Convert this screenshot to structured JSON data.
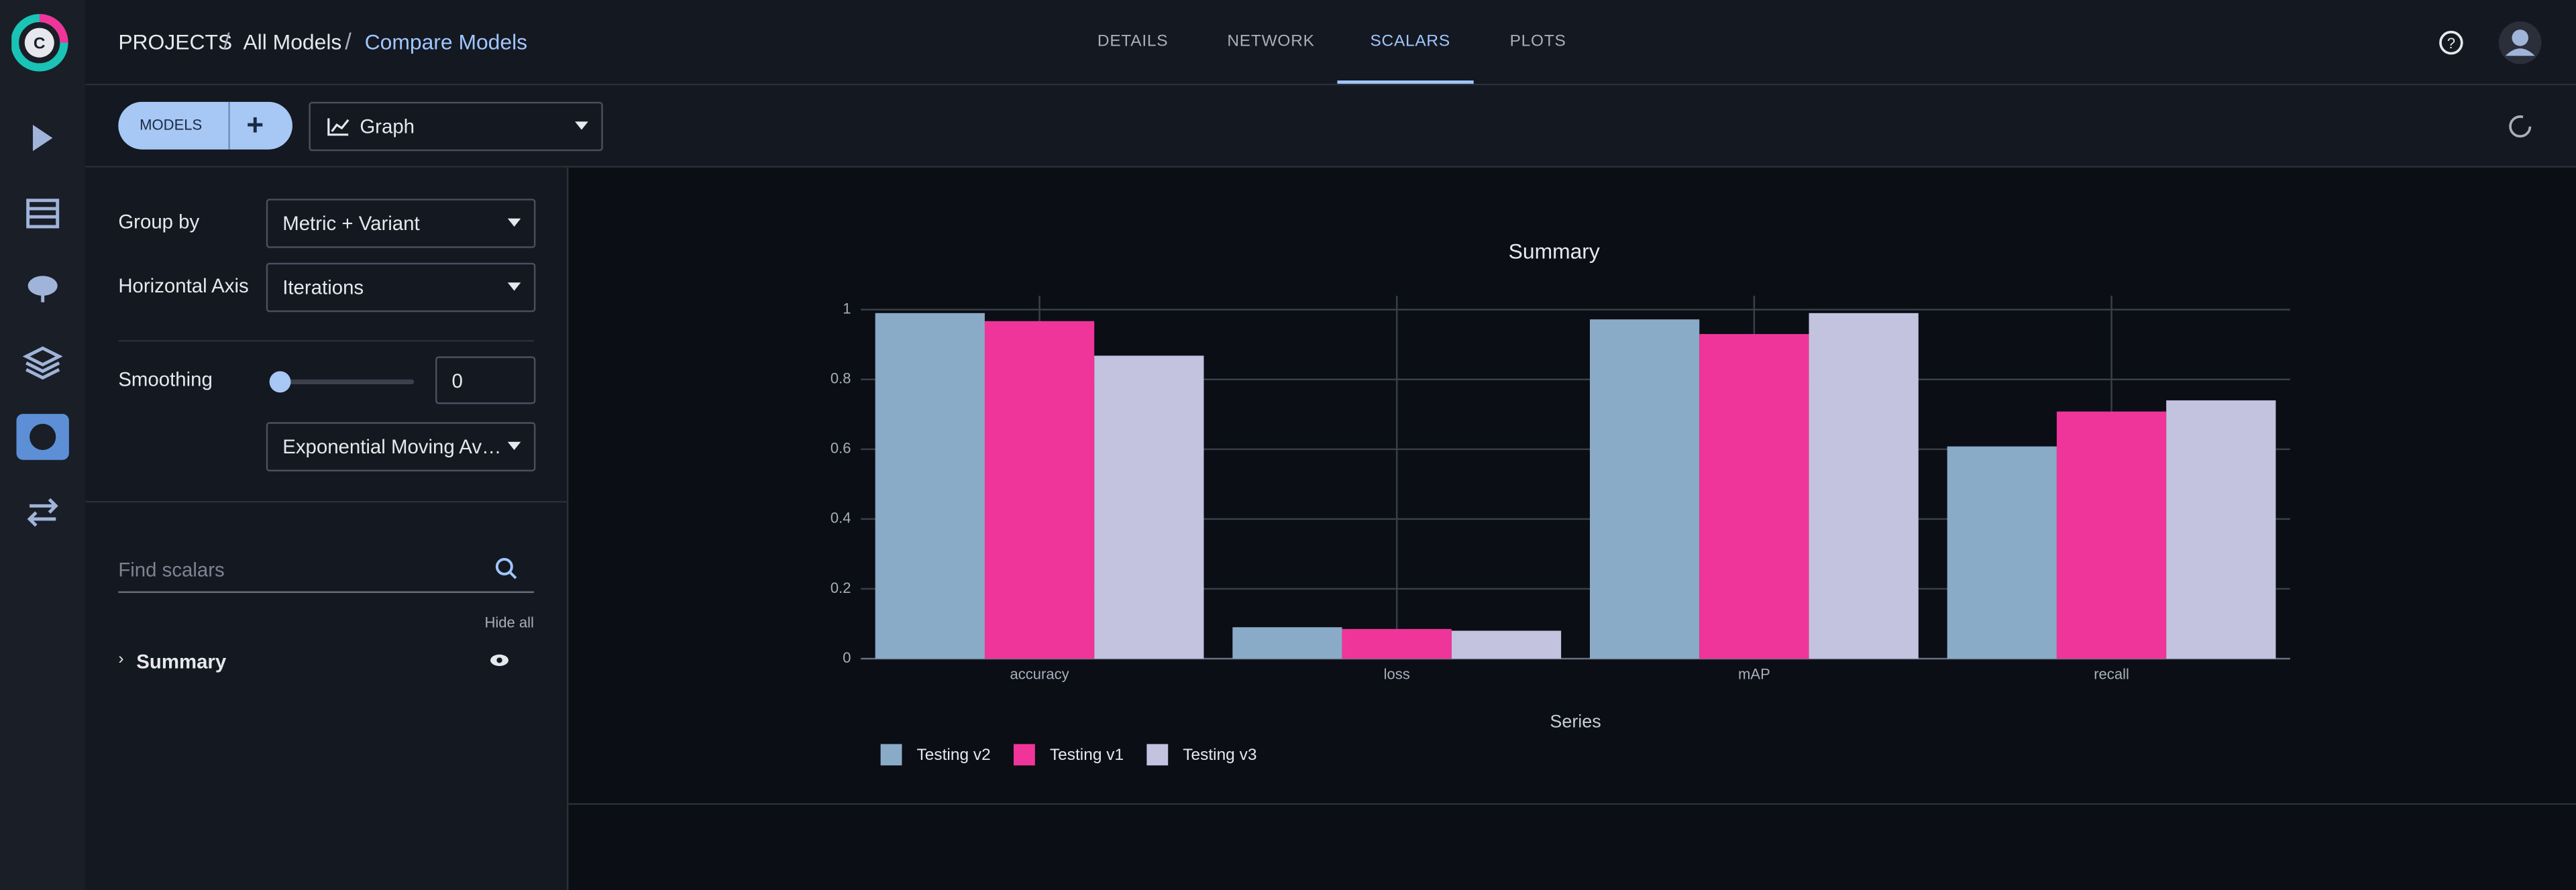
{
  "header": {
    "breadcrumb": [
      "PROJECTS",
      "All Models",
      "Compare Models"
    ],
    "tabs": [
      "DETAILS",
      "NETWORK",
      "SCALARS",
      "PLOTS"
    ]
  },
  "toolbar": {
    "models_button": "MODELS",
    "view_select": "Graph"
  },
  "sidebar": {
    "group_by_label": "Group by",
    "group_by_value": "Metric + Variant",
    "horizontal_axis_label": "Horizontal Axis",
    "horizontal_axis_value": "Iterations",
    "smoothing_label": "Smoothing",
    "smoothing_value": 0,
    "smoothing_type": "Exponential Moving Av…",
    "search_placeholder": "Find scalars",
    "hide_all": "Hide all",
    "groups": [
      "Summary"
    ]
  },
  "chart_data": {
    "type": "bar",
    "title": "Summary",
    "categories": [
      "accuracy",
      "loss",
      "mAP",
      "recall"
    ],
    "series": [
      {
        "name": "Testing v2",
        "color": "#8aabc8",
        "values": [
          0.99,
          0.09,
          0.972,
          0.608
        ]
      },
      {
        "name": "Testing v1",
        "color": "#f0359a",
        "values": [
          0.967,
          0.085,
          0.93,
          0.708
        ]
      },
      {
        "name": "Testing v3",
        "color": "#c3c3e0",
        "values": [
          0.868,
          0.08,
          0.99,
          0.74
        ]
      }
    ],
    "ylim": [
      0,
      1.04
    ],
    "yticks": [
      0,
      0.2,
      0.4,
      0.6,
      0.8,
      1
    ],
    "grid": true,
    "legend_title": "Series",
    "legend": "bottom-left"
  }
}
